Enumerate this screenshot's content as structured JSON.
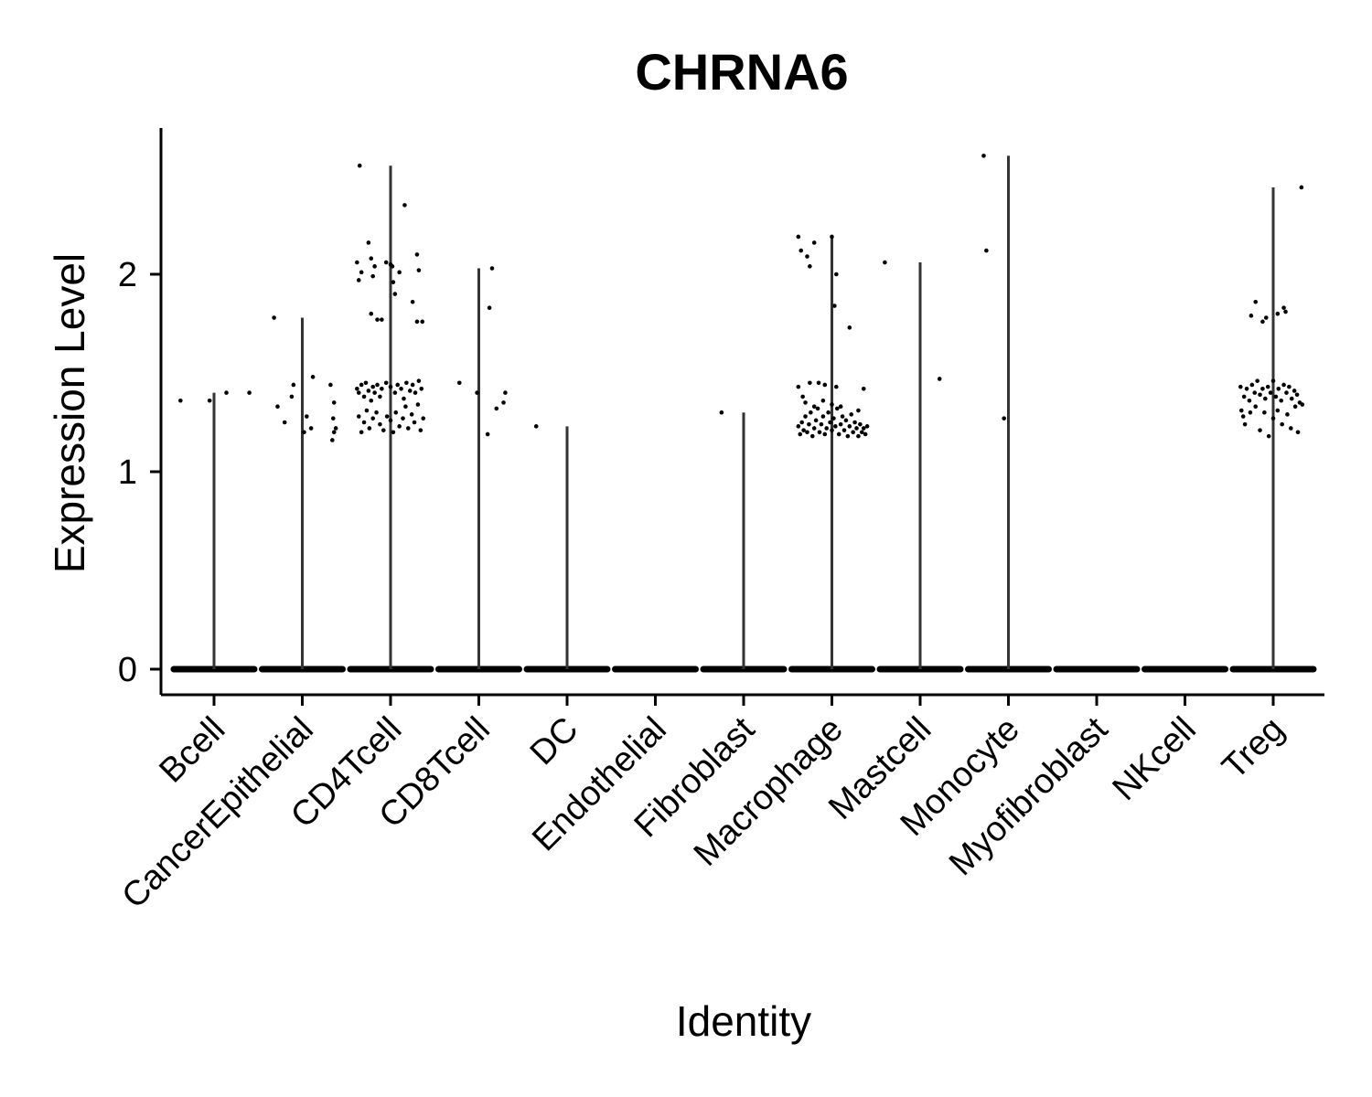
{
  "chart_data": {
    "type": "violin",
    "title": "CHRNA6",
    "xlabel": "Identity",
    "ylabel": "Expression Level",
    "ylim": [
      -0.13,
      2.75
    ],
    "yticks": [
      0,
      1,
      2
    ],
    "grid": false,
    "legend": "none",
    "categories": [
      "Bcell",
      "CancerEpithelial",
      "CD4Tcell",
      "CD8Tcell",
      "DC",
      "Endothelial",
      "Fibroblast",
      "Macrophage",
      "Mastcell",
      "Monocyte",
      "Myofibroblast",
      "NKcell",
      "Treg"
    ],
    "max_values": [
      1.4,
      1.78,
      2.55,
      2.03,
      1.23,
      0,
      1.3,
      2.19,
      2.06,
      2.6,
      0,
      0,
      2.44
    ],
    "points": [
      [
        [
          -0.38,
          1.36
        ],
        [
          -0.05,
          1.36
        ],
        [
          0.14,
          1.4
        ],
        [
          0.4,
          1.4
        ]
      ],
      [
        [
          -0.32,
          1.78
        ],
        [
          -0.28,
          1.33
        ],
        [
          -0.2,
          1.25
        ],
        [
          -0.1,
          1.44
        ],
        [
          -0.12,
          1.38
        ],
        [
          0.02,
          1.2
        ],
        [
          0.05,
          1.28
        ],
        [
          0.1,
          1.22
        ],
        [
          0.12,
          1.48
        ],
        [
          0.32,
          1.44
        ],
        [
          0.35,
          1.27
        ],
        [
          0.36,
          1.2
        ],
        [
          0.34,
          1.16
        ],
        [
          0.38,
          1.22
        ],
        [
          0.36,
          1.35
        ]
      ],
      [
        [
          -0.35,
          2.55
        ],
        [
          -0.38,
          2.06
        ],
        [
          -0.33,
          2.01
        ],
        [
          -0.36,
          1.97
        ],
        [
          -0.25,
          2.16
        ],
        [
          -0.22,
          2.08
        ],
        [
          -0.2,
          1.99
        ],
        [
          -0.18,
          2.04
        ],
        [
          -0.22,
          1.8
        ],
        [
          -0.15,
          1.77
        ],
        [
          -0.1,
          1.77
        ],
        [
          -0.05,
          2.06
        ],
        [
          0.0,
          2.05
        ],
        [
          0.02,
          2.04
        ],
        [
          0.03,
          1.96
        ],
        [
          0.05,
          1.9
        ],
        [
          0.1,
          2.01
        ],
        [
          0.16,
          2.35
        ],
        [
          0.25,
          1.86
        ],
        [
          0.3,
          2.1
        ],
        [
          0.32,
          2.02
        ],
        [
          0.3,
          1.76
        ],
        [
          0.36,
          1.76
        ],
        [
          -0.38,
          1.42
        ],
        [
          -0.36,
          1.4
        ],
        [
          -0.33,
          1.44
        ],
        [
          -0.3,
          1.38
        ],
        [
          -0.28,
          1.45
        ],
        [
          -0.25,
          1.41
        ],
        [
          -0.22,
          1.36
        ],
        [
          -0.2,
          1.43
        ],
        [
          -0.18,
          1.4
        ],
        [
          -0.15,
          1.44
        ],
        [
          -0.12,
          1.38
        ],
        [
          -0.1,
          1.42
        ],
        [
          -0.05,
          1.45
        ],
        [
          0.0,
          1.43
        ],
        [
          0.05,
          1.4
        ],
        [
          0.08,
          1.44
        ],
        [
          0.12,
          1.42
        ],
        [
          0.15,
          1.37
        ],
        [
          0.18,
          1.45
        ],
        [
          0.22,
          1.41
        ],
        [
          0.25,
          1.44
        ],
        [
          0.28,
          1.4
        ],
        [
          0.32,
          1.46
        ],
        [
          0.35,
          1.42
        ],
        [
          -0.36,
          1.28
        ],
        [
          -0.33,
          1.2
        ],
        [
          -0.3,
          1.25
        ],
        [
          -0.27,
          1.31
        ],
        [
          -0.24,
          1.22
        ],
        [
          -0.2,
          1.27
        ],
        [
          -0.16,
          1.3
        ],
        [
          -0.12,
          1.24
        ],
        [
          -0.08,
          1.21
        ],
        [
          -0.04,
          1.28
        ],
        [
          0.0,
          1.26
        ],
        [
          0.03,
          1.2
        ],
        [
          0.06,
          1.3
        ],
        [
          0.1,
          1.23
        ],
        [
          0.14,
          1.27
        ],
        [
          0.17,
          1.33
        ],
        [
          0.2,
          1.22
        ],
        [
          0.24,
          1.29
        ],
        [
          0.27,
          1.25
        ],
        [
          0.31,
          1.34
        ],
        [
          0.34,
          1.21
        ],
        [
          0.37,
          1.27
        ]
      ],
      [
        [
          -0.22,
          1.45
        ],
        [
          -0.02,
          1.4
        ],
        [
          0.1,
          1.19
        ],
        [
          0.15,
          2.03
        ],
        [
          0.12,
          1.83
        ],
        [
          0.2,
          1.32
        ],
        [
          0.28,
          1.35
        ],
        [
          0.3,
          1.4
        ]
      ],
      [
        [
          -0.35,
          1.23
        ]
      ],
      [],
      [
        [
          -0.25,
          1.3
        ]
      ],
      [
        [
          -0.38,
          2.19
        ],
        [
          -0.35,
          2.12
        ],
        [
          -0.28,
          2.09
        ],
        [
          -0.25,
          2.04
        ],
        [
          -0.2,
          2.16
        ],
        [
          0.0,
          2.19
        ],
        [
          0.05,
          2.0
        ],
        [
          0.03,
          1.84
        ],
        [
          0.2,
          1.73
        ],
        [
          -0.38,
          1.43
        ],
        [
          -0.33,
          1.38
        ],
        [
          -0.25,
          1.45
        ],
        [
          -0.15,
          1.45
        ],
        [
          -0.08,
          1.44
        ],
        [
          0.05,
          1.43
        ],
        [
          0.36,
          1.42
        ],
        [
          -0.38,
          1.23
        ],
        [
          -0.36,
          1.19
        ],
        [
          -0.34,
          1.25
        ],
        [
          -0.32,
          1.21
        ],
        [
          -0.3,
          1.28
        ],
        [
          -0.28,
          1.2
        ],
        [
          -0.26,
          1.24
        ],
        [
          -0.24,
          1.3
        ],
        [
          -0.22,
          1.18
        ],
        [
          -0.2,
          1.22
        ],
        [
          -0.18,
          1.26
        ],
        [
          -0.16,
          1.32
        ],
        [
          -0.14,
          1.2
        ],
        [
          -0.12,
          1.24
        ],
        [
          -0.1,
          1.28
        ],
        [
          -0.08,
          1.19
        ],
        [
          -0.06,
          1.22
        ],
        [
          -0.04,
          1.3
        ],
        [
          -0.02,
          1.25
        ],
        [
          0.0,
          1.21
        ],
        [
          0.02,
          1.27
        ],
        [
          0.04,
          1.23
        ],
        [
          0.06,
          1.32
        ],
        [
          0.08,
          1.19
        ],
        [
          0.1,
          1.24
        ],
        [
          0.12,
          1.28
        ],
        [
          0.14,
          1.21
        ],
        [
          0.16,
          1.26
        ],
        [
          0.18,
          1.18
        ],
        [
          0.2,
          1.23
        ],
        [
          0.22,
          1.29
        ],
        [
          0.24,
          1.2
        ],
        [
          0.26,
          1.25
        ],
        [
          0.28,
          1.22
        ],
        [
          0.3,
          1.18
        ],
        [
          0.32,
          1.24
        ],
        [
          0.34,
          1.2
        ],
        [
          0.36,
          1.22
        ],
        [
          0.38,
          1.19
        ],
        [
          0.4,
          1.23
        ],
        [
          -0.3,
          1.35
        ],
        [
          -0.1,
          1.36
        ],
        [
          0.1,
          1.33
        ],
        [
          0.3,
          1.31
        ],
        [
          -0.2,
          1.33
        ],
        [
          0.0,
          1.34
        ]
      ],
      [
        [
          -0.4,
          2.06
        ],
        [
          0.22,
          1.47
        ]
      ],
      [
        [
          -0.28,
          2.6
        ],
        [
          -0.25,
          2.12
        ],
        [
          -0.05,
          1.27
        ]
      ],
      [],
      [],
      [
        [
          -0.25,
          1.79
        ],
        [
          -0.2,
          1.86
        ],
        [
          -0.12,
          1.76
        ],
        [
          -0.08,
          1.78
        ],
        [
          0.05,
          1.8
        ],
        [
          0.12,
          1.83
        ],
        [
          0.14,
          1.81
        ],
        [
          0.32,
          2.44
        ],
        [
          -0.37,
          1.43
        ],
        [
          -0.33,
          1.38
        ],
        [
          -0.3,
          1.42
        ],
        [
          -0.27,
          1.36
        ],
        [
          -0.24,
          1.44
        ],
        [
          -0.21,
          1.4
        ],
        [
          -0.18,
          1.46
        ],
        [
          -0.15,
          1.39
        ],
        [
          -0.12,
          1.42
        ],
        [
          -0.09,
          1.37
        ],
        [
          -0.06,
          1.43
        ],
        [
          -0.03,
          1.4
        ],
        [
          0.0,
          1.46
        ],
        [
          0.03,
          1.38
        ],
        [
          0.06,
          1.42
        ],
        [
          0.09,
          1.36
        ],
        [
          0.12,
          1.44
        ],
        [
          0.15,
          1.4
        ],
        [
          0.18,
          1.43
        ],
        [
          0.21,
          1.37
        ],
        [
          0.24,
          1.41
        ],
        [
          0.27,
          1.39
        ],
        [
          0.3,
          1.35
        ],
        [
          -0.36,
          1.31
        ],
        [
          -0.34,
          1.28
        ],
        [
          -0.32,
          1.24
        ],
        [
          -0.26,
          1.3
        ],
        [
          -0.2,
          1.33
        ],
        [
          -0.15,
          1.21
        ],
        [
          -0.1,
          1.3
        ],
        [
          -0.05,
          1.18
        ],
        [
          0.0,
          1.27
        ],
        [
          0.05,
          1.31
        ],
        [
          0.1,
          1.24
        ],
        [
          0.16,
          1.29
        ],
        [
          0.2,
          1.22
        ],
        [
          0.25,
          1.33
        ],
        [
          0.28,
          1.2
        ],
        [
          0.33,
          1.34
        ]
      ]
    ]
  }
}
